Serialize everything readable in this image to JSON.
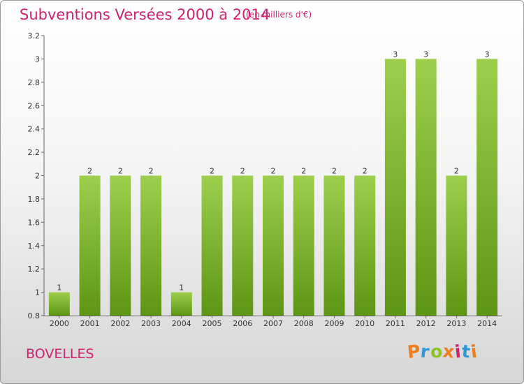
{
  "title": "Subventions Versées 2000 à 2014",
  "subtitle": "(en milliers d'€)",
  "commune": "BOVELLES",
  "logo": {
    "letters": [
      "P",
      "r",
      "o",
      "x",
      "i",
      "t",
      "i"
    ],
    "colors": [
      "#f07d19",
      "#2f98d6",
      "#8fc31f",
      "#f07d19",
      "#d1206e",
      "#2f98d6",
      "#f07d19"
    ]
  },
  "colors": {
    "bar_light": "#9ccf4c",
    "bar_dark": "#5d9614",
    "title": "#d1206e"
  },
  "chart_data": {
    "type": "bar",
    "categories": [
      "2000",
      "2001",
      "2002",
      "2003",
      "2004",
      "2005",
      "2006",
      "2007",
      "2008",
      "2009",
      "2010",
      "2011",
      "2012",
      "2013",
      "2014"
    ],
    "values": [
      1,
      2,
      2,
      2,
      1,
      2,
      2,
      2,
      2,
      2,
      2,
      3,
      3,
      2,
      3
    ],
    "value_labels": [
      "1",
      "2",
      "2",
      "2",
      "1",
      "2",
      "2",
      "2",
      "2",
      "2",
      "2",
      "3",
      "3",
      "2",
      "3"
    ],
    "yticks": [
      "0.8",
      "1",
      "1.2",
      "1.4",
      "1.6",
      "1.8",
      "2",
      "2.2",
      "2.4",
      "2.6",
      "2.8",
      "3",
      "3.2"
    ],
    "ylim": [
      0.8,
      3.2
    ],
    "grid": false
  }
}
